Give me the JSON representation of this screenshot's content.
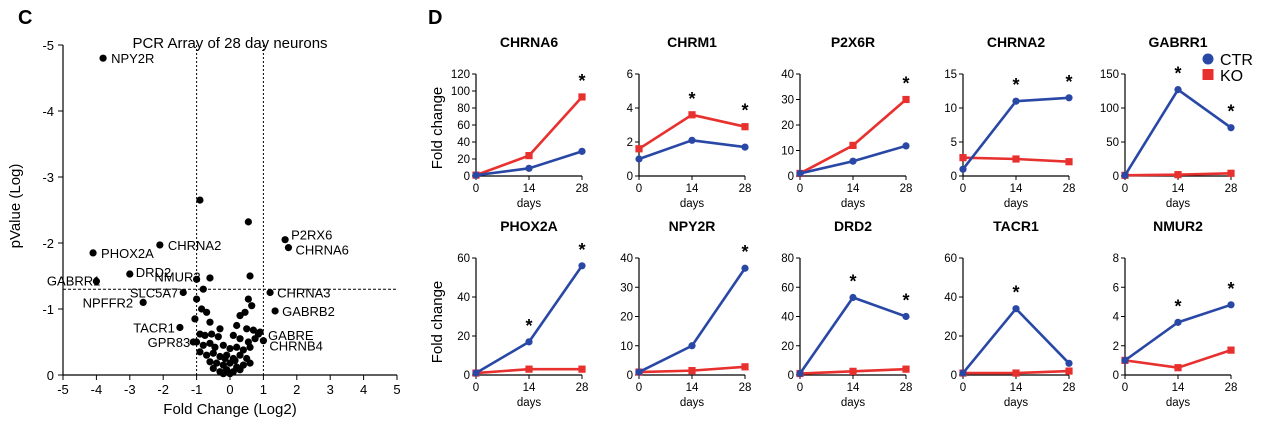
{
  "panel_labels": {
    "c": "C",
    "d": "D"
  },
  "colors": {
    "ctr": "#2948a6",
    "ko": "#e8302e",
    "axis": "#000000",
    "dots": "#000000"
  },
  "volcano": {
    "title": "PCR Array of 28 day neurons",
    "xlabel": "Fold Change (Log2)",
    "ylabel": "pValue (Log)",
    "xticks": [
      "-5",
      "-4",
      "-3",
      "-2",
      "-1",
      "0",
      "1",
      "2",
      "3",
      "4",
      "5"
    ],
    "yticks": [
      "-5",
      "-4",
      "-3",
      "-2",
      "-1",
      "0"
    ]
  },
  "legend": {
    "ctr_label": "CTR",
    "ko_label": "KO"
  },
  "d_axis": {
    "ylabel": "Fold change",
    "xlabel": "days",
    "xticks": [
      "0",
      "14",
      "28"
    ]
  },
  "chart_data": [
    {
      "type": "scatter",
      "title": "PCR Array of 28 day neurons",
      "xlabel": "Fold Change (Log2)",
      "ylabel": "pValue (Log)",
      "xlim": [
        -5,
        5
      ],
      "ylim": [
        0,
        -5
      ],
      "threshold_lines": {
        "x": [
          -1,
          1
        ],
        "y": -1.3
      },
      "labeled_points": [
        {
          "label": "NPY2R",
          "x": -3.8,
          "y": -4.8
        },
        {
          "label": "PHOX2A",
          "x": -4.1,
          "y": -1.85
        },
        {
          "label": "CHRNA2",
          "x": -2.1,
          "y": -1.97
        },
        {
          "label": "GABRR1",
          "x": -4.0,
          "y": -1.42
        },
        {
          "label": "DRD2",
          "x": -3.0,
          "y": -1.53
        },
        {
          "label": "NMUR2",
          "x": -1.0,
          "y": -1.45
        },
        {
          "label": "SLC5A7",
          "x": -1.4,
          "y": -1.25
        },
        {
          "label": "NPFFR2",
          "x": -2.6,
          "y": -1.1
        },
        {
          "label": "TACR1",
          "x": -1.5,
          "y": -0.72
        },
        {
          "label": "GPR83",
          "x": -1.1,
          "y": -0.5
        },
        {
          "label": "P2RX6",
          "x": 1.65,
          "y": -2.05
        },
        {
          "label": "CHRNA6",
          "x": 1.75,
          "y": -1.93
        },
        {
          "label": "CHRNA3",
          "x": 1.2,
          "y": -1.25
        },
        {
          "label": "GABRB2",
          "x": 1.35,
          "y": -0.97
        },
        {
          "label": "GABRE",
          "x": 0.9,
          "y": -0.65
        },
        {
          "label": "CHRNB4",
          "x": 1.0,
          "y": -0.52
        }
      ],
      "points": [
        [
          -0.9,
          -2.65
        ],
        [
          0.55,
          -2.32
        ],
        [
          0.6,
          -1.5
        ],
        [
          -0.6,
          -1.47
        ],
        [
          0.55,
          -1.15
        ],
        [
          0.65,
          -1.05
        ],
        [
          -0.8,
          -1.3
        ],
        [
          -1.0,
          -1.15
        ],
        [
          -0.85,
          -1.0
        ],
        [
          -0.7,
          -0.95
        ],
        [
          0.3,
          -0.9
        ],
        [
          0.45,
          -0.95
        ],
        [
          -1.05,
          -0.85
        ],
        [
          -0.6,
          -0.8
        ],
        [
          -0.3,
          -0.7
        ],
        [
          0.2,
          -0.75
        ],
        [
          0.5,
          -0.7
        ],
        [
          0.7,
          -0.68
        ],
        [
          0.85,
          -0.62
        ],
        [
          -0.9,
          -0.62
        ],
        [
          -0.75,
          -0.6
        ],
        [
          -0.55,
          -0.62
        ],
        [
          -0.35,
          -0.58
        ],
        [
          0.1,
          -0.6
        ],
        [
          0.3,
          -0.55
        ],
        [
          0.55,
          -0.5
        ],
        [
          0.75,
          -0.55
        ],
        [
          -1.0,
          -0.5
        ],
        [
          -0.8,
          -0.45
        ],
        [
          -0.6,
          -0.48
        ],
        [
          -0.45,
          -0.42
        ],
        [
          -0.2,
          -0.45
        ],
        [
          0.0,
          -0.4
        ],
        [
          0.2,
          -0.42
        ],
        [
          0.4,
          -0.38
        ],
        [
          0.6,
          -0.42
        ],
        [
          -0.9,
          -0.35
        ],
        [
          -0.7,
          -0.3
        ],
        [
          -0.5,
          -0.33
        ],
        [
          -0.3,
          -0.28
        ],
        [
          -0.1,
          -0.3
        ],
        [
          0.1,
          -0.25
        ],
        [
          0.3,
          -0.3
        ],
        [
          0.5,
          -0.25
        ],
        [
          -0.6,
          -0.2
        ],
        [
          -0.4,
          -0.18
        ],
        [
          -0.2,
          -0.15
        ],
        [
          0.0,
          -0.18
        ],
        [
          0.2,
          -0.12
        ],
        [
          0.4,
          -0.15
        ],
        [
          -0.5,
          -0.1
        ],
        [
          -0.3,
          -0.05
        ],
        [
          -0.1,
          -0.08
        ],
        [
          0.1,
          -0.05
        ],
        [
          0.3,
          -0.08
        ],
        [
          -0.2,
          -0.02
        ],
        [
          0.0,
          -0.02
        ],
        [
          0.15,
          -0.22
        ],
        [
          -0.15,
          -0.25
        ],
        [
          0.6,
          -0.18
        ]
      ]
    },
    {
      "type": "line",
      "title": "CHRNA6",
      "x": [
        0,
        14,
        28
      ],
      "ylim": [
        0,
        120
      ],
      "yticks": [
        "0",
        "20",
        "40",
        "60",
        "80",
        "100",
        "120"
      ],
      "series": [
        {
          "name": "CTR",
          "values": [
            1,
            9,
            29
          ]
        },
        {
          "name": "KO",
          "values": [
            1,
            24,
            93
          ]
        }
      ],
      "stars": [
        28
      ]
    },
    {
      "type": "line",
      "title": "CHRM1",
      "x": [
        0,
        14,
        28
      ],
      "ylim": [
        0,
        6
      ],
      "yticks": [
        "0",
        "2",
        "4",
        "6"
      ],
      "series": [
        {
          "name": "CTR",
          "values": [
            1,
            2.1,
            1.7
          ]
        },
        {
          "name": "KO",
          "values": [
            1.6,
            3.6,
            2.9
          ]
        }
      ],
      "stars": [
        14,
        28
      ]
    },
    {
      "type": "line",
      "title": "P2X6R",
      "x": [
        0,
        14,
        28
      ],
      "ylim": [
        0,
        40
      ],
      "yticks": [
        "0",
        "10",
        "20",
        "30",
        "40"
      ],
      "series": [
        {
          "name": "CTR",
          "values": [
            1,
            5.8,
            11.8
          ]
        },
        {
          "name": "KO",
          "values": [
            1,
            12,
            30
          ]
        }
      ],
      "stars": [
        28
      ]
    },
    {
      "type": "line",
      "title": "CHRNA2",
      "x": [
        0,
        14,
        28
      ],
      "ylim": [
        0,
        15
      ],
      "yticks": [
        "0",
        "5",
        "10",
        "15"
      ],
      "series": [
        {
          "name": "CTR",
          "values": [
            1,
            11,
            11.5
          ]
        },
        {
          "name": "KO",
          "values": [
            2.7,
            2.5,
            2.1
          ]
        }
      ],
      "stars": [
        14,
        28
      ]
    },
    {
      "type": "line",
      "title": "GABRR1",
      "x": [
        0,
        14,
        28
      ],
      "ylim": [
        0,
        150
      ],
      "yticks": [
        "0",
        "50",
        "100",
        "150"
      ],
      "series": [
        {
          "name": "CTR",
          "values": [
            1,
            127,
            71
          ]
        },
        {
          "name": "KO",
          "values": [
            1,
            2,
            4
          ]
        }
      ],
      "stars": [
        14,
        28
      ]
    },
    {
      "type": "line",
      "title": "PHOX2A",
      "x": [
        0,
        14,
        28
      ],
      "ylim": [
        0,
        60
      ],
      "yticks": [
        "0",
        "20",
        "40",
        "60"
      ],
      "series": [
        {
          "name": "CTR",
          "values": [
            1,
            17,
            56
          ]
        },
        {
          "name": "KO",
          "values": [
            1,
            3,
            3
          ]
        }
      ],
      "stars": [
        14,
        28
      ]
    },
    {
      "type": "line",
      "title": "NPY2R",
      "x": [
        0,
        14,
        28
      ],
      "ylim": [
        0,
        40
      ],
      "yticks": [
        "0",
        "10",
        "20",
        "30",
        "40"
      ],
      "series": [
        {
          "name": "CTR",
          "values": [
            1,
            10,
            36.5
          ]
        },
        {
          "name": "KO",
          "values": [
            1,
            1.5,
            2.8
          ]
        }
      ],
      "stars": [
        28
      ]
    },
    {
      "type": "line",
      "title": "DRD2",
      "x": [
        0,
        14,
        28
      ],
      "ylim": [
        0,
        80
      ],
      "yticks": [
        "0",
        "20",
        "40",
        "60",
        "80"
      ],
      "series": [
        {
          "name": "CTR",
          "values": [
            1,
            53,
            40
          ]
        },
        {
          "name": "KO",
          "values": [
            1,
            2.5,
            4
          ]
        }
      ],
      "stars": [
        14,
        28
      ]
    },
    {
      "type": "line",
      "title": "TACR1",
      "x": [
        0,
        14,
        28
      ],
      "ylim": [
        0,
        60
      ],
      "yticks": [
        "0",
        "20",
        "40",
        "60"
      ],
      "series": [
        {
          "name": "CTR",
          "values": [
            1,
            34,
            6
          ]
        },
        {
          "name": "KO",
          "values": [
            1,
            1,
            2
          ]
        }
      ],
      "stars": [
        14
      ]
    },
    {
      "type": "line",
      "title": "NMUR2",
      "x": [
        0,
        14,
        28
      ],
      "ylim": [
        0,
        8
      ],
      "yticks": [
        "0",
        "2",
        "4",
        "6",
        "8"
      ],
      "series": [
        {
          "name": "CTR",
          "values": [
            1,
            3.6,
            4.8
          ]
        },
        {
          "name": "KO",
          "values": [
            1,
            0.5,
            1.7
          ]
        }
      ],
      "stars": [
        14,
        28
      ]
    }
  ]
}
